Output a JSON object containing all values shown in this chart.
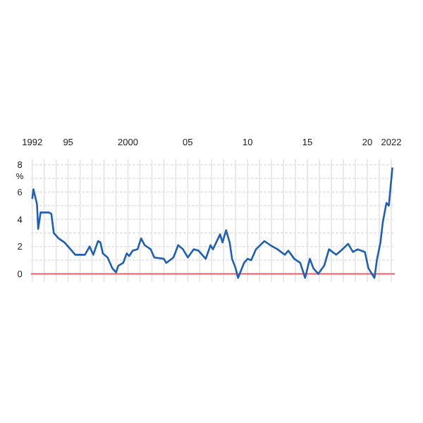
{
  "chart_data": {
    "type": "line",
    "ylabel": "%",
    "x": [
      1992.0,
      1992.1,
      1992.4,
      1992.5,
      1992.7,
      1993.4,
      1993.6,
      1993.8,
      1994.2,
      1994.7,
      1995.2,
      1995.6,
      1996.4,
      1996.8,
      1997.1,
      1997.5,
      1997.7,
      1997.9,
      1998.3,
      1998.7,
      1999.0,
      1999.2,
      1999.6,
      1999.9,
      2000.1,
      2000.4,
      2000.8,
      2001.1,
      2001.4,
      2001.9,
      2002.2,
      2003.0,
      2003.2,
      2003.8,
      2004.2,
      2004.6,
      2005.0,
      2005.5,
      2005.9,
      2006.5,
      2006.9,
      2007.1,
      2007.7,
      2007.9,
      2008.2,
      2008.5,
      2008.7,
      2009.0,
      2009.2,
      2009.7,
      2010.0,
      2010.3,
      2010.7,
      2011.4,
      2011.9,
      2012.5,
      2013.1,
      2013.4,
      2013.9,
      2014.4,
      2014.8,
      2015.2,
      2015.5,
      2015.9,
      2016.4,
      2016.8,
      2017.4,
      2017.8,
      2018.4,
      2018.8,
      2019.2,
      2019.8,
      2020.1,
      2020.6,
      2020.8,
      2021.1,
      2021.3,
      2021.6,
      2021.8,
      2022.1
    ],
    "series": [
      {
        "color": "#1f5fb4",
        "values": [
          5.5,
          6.2,
          5.1,
          3.3,
          4.5,
          4.5,
          4.4,
          3.0,
          2.6,
          2.3,
          1.8,
          1.4,
          1.4,
          2.0,
          1.4,
          2.4,
          2.3,
          1.5,
          1.2,
          0.4,
          0.1,
          0.6,
          0.8,
          1.5,
          1.3,
          1.7,
          1.8,
          2.6,
          2.1,
          1.8,
          1.2,
          1.1,
          0.8,
          1.2,
          2.1,
          1.8,
          1.2,
          1.8,
          1.7,
          1.1,
          2.1,
          1.8,
          2.9,
          2.3,
          3.2,
          2.3,
          1.1,
          0.4,
          -0.3,
          0.8,
          1.1,
          1.0,
          1.8,
          2.4,
          2.1,
          1.8,
          1.4,
          1.7,
          1.1,
          0.8,
          -0.3,
          1.1,
          0.4,
          0.0,
          0.6,
          1.8,
          1.4,
          1.7,
          2.2,
          1.6,
          1.8,
          1.6,
          0.4,
          -0.3,
          1.0,
          2.3,
          3.8,
          5.2,
          5.0,
          7.8
        ]
      }
    ],
    "xlim": [
      1991.9,
      2022.3
    ],
    "xticks": [
      {
        "value": 1992,
        "label": "1992"
      },
      {
        "value": 1993,
        "label": null
      },
      {
        "value": 1994,
        "label": null
      },
      {
        "value": 1995,
        "label": "95"
      },
      {
        "value": 1996,
        "label": null
      },
      {
        "value": 1997,
        "label": null
      },
      {
        "value": 1998,
        "label": null
      },
      {
        "value": 1999,
        "label": null
      },
      {
        "value": 2000,
        "label": "2000"
      },
      {
        "value": 2001,
        "label": null
      },
      {
        "value": 2002,
        "label": null
      },
      {
        "value": 2003,
        "label": null
      },
      {
        "value": 2004,
        "label": null
      },
      {
        "value": 2005,
        "label": "05"
      },
      {
        "value": 2006,
        "label": null
      },
      {
        "value": 2007,
        "label": null
      },
      {
        "value": 2008,
        "label": null
      },
      {
        "value": 2009,
        "label": null
      },
      {
        "value": 2010,
        "label": "10"
      },
      {
        "value": 2011,
        "label": null
      },
      {
        "value": 2012,
        "label": null
      },
      {
        "value": 2013,
        "label": null
      },
      {
        "value": 2014,
        "label": null
      },
      {
        "value": 2015,
        "label": "15"
      },
      {
        "value": 2016,
        "label": null
      },
      {
        "value": 2017,
        "label": null
      },
      {
        "value": 2018,
        "label": null
      },
      {
        "value": 2019,
        "label": null
      },
      {
        "value": 2020,
        "label": "20"
      },
      {
        "value": 2021,
        "label": null
      },
      {
        "value": 2022,
        "label": "2022"
      }
    ],
    "ylim": [
      -0.6,
      8.4
    ],
    "yticks": [
      0,
      {
        "value": 1,
        "label": null
      },
      2,
      {
        "value": 3,
        "label": null
      },
      4,
      {
        "value": 5,
        "label": null
      },
      6,
      {
        "value": 7,
        "label": null
      },
      8
    ],
    "grid": true,
    "ref_lines": [
      {
        "axis": "y",
        "value": 0,
        "color": "#f0606a"
      }
    ]
  }
}
